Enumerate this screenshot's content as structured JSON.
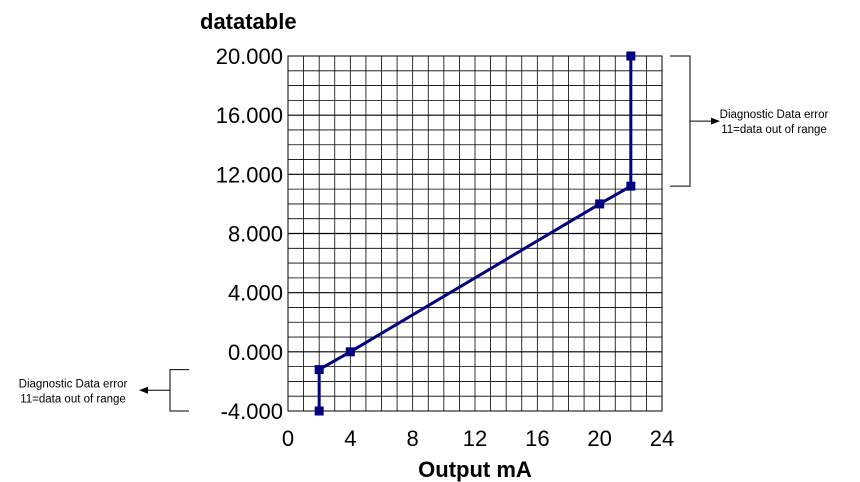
{
  "chart_data": {
    "type": "line",
    "title": "datatable",
    "xlabel": "Output mA",
    "ylabel": "",
    "xlim": [
      0,
      24
    ],
    "ylim": [
      -4,
      20
    ],
    "x_ticks": [
      "0",
      "4",
      "8",
      "12",
      "16",
      "20",
      "24"
    ],
    "y_ticks": [
      "-4.000",
      "0.000",
      "4.000",
      "8.000",
      "12.000",
      "16.000",
      "20.000"
    ],
    "grid": true,
    "line_color": "#000080",
    "series": [
      {
        "x": [
          2,
          2,
          4,
          20,
          22,
          22
        ],
        "y": [
          -4,
          -1.2,
          0,
          10,
          11.2,
          20
        ]
      }
    ],
    "annotations": [
      {
        "id": "upper",
        "line1": "Diagnostic Data error",
        "line2": "11=data out of range",
        "range": [
          11.2,
          20
        ]
      },
      {
        "id": "lower",
        "line1": "Diagnostic Data error",
        "line2": "11=data out of range",
        "range": [
          -4,
          -1.2
        ]
      }
    ]
  }
}
